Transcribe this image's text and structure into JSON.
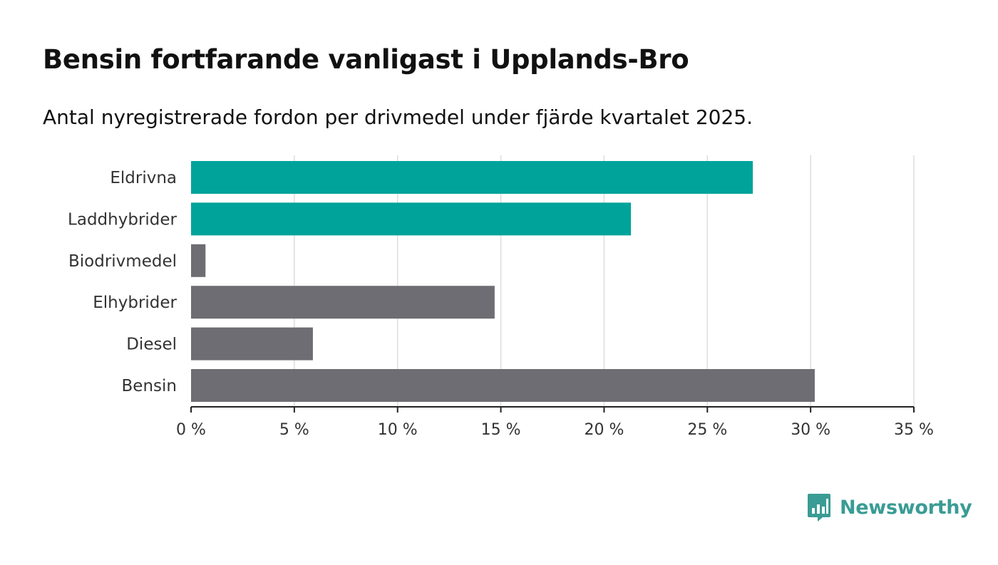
{
  "title": "Bensin fortfarande vanligast i Upplands-Bro",
  "subtitle": "Antal nyregistrerade fordon per drivmedel under fjärde kvartalet 2025.",
  "brand": {
    "name": "Newsworthy",
    "icon": "newsworthy-chart-bubble-icon",
    "color": "#3a9c94"
  },
  "chart_data": {
    "type": "bar",
    "orientation": "horizontal",
    "categories": [
      "Eldrivna",
      "Laddhybrider",
      "Biodrivmedel",
      "Elhybrider",
      "Diesel",
      "Bensin"
    ],
    "values": [
      27.2,
      21.3,
      0.7,
      14.7,
      5.9,
      30.2
    ],
    "colors": [
      "#00a39a",
      "#00a39a",
      "#6e6d73",
      "#6e6d73",
      "#6e6d73",
      "#6e6d73"
    ],
    "xlim": [
      0,
      35
    ],
    "xticks": [
      0,
      5,
      10,
      15,
      20,
      25,
      30,
      35
    ],
    "xtick_labels": [
      "0 %",
      "5 %",
      "10 %",
      "15 %",
      "20 %",
      "25 %",
      "30 %",
      "35 %"
    ],
    "grid": true,
    "xlabel": "",
    "ylabel": ""
  }
}
